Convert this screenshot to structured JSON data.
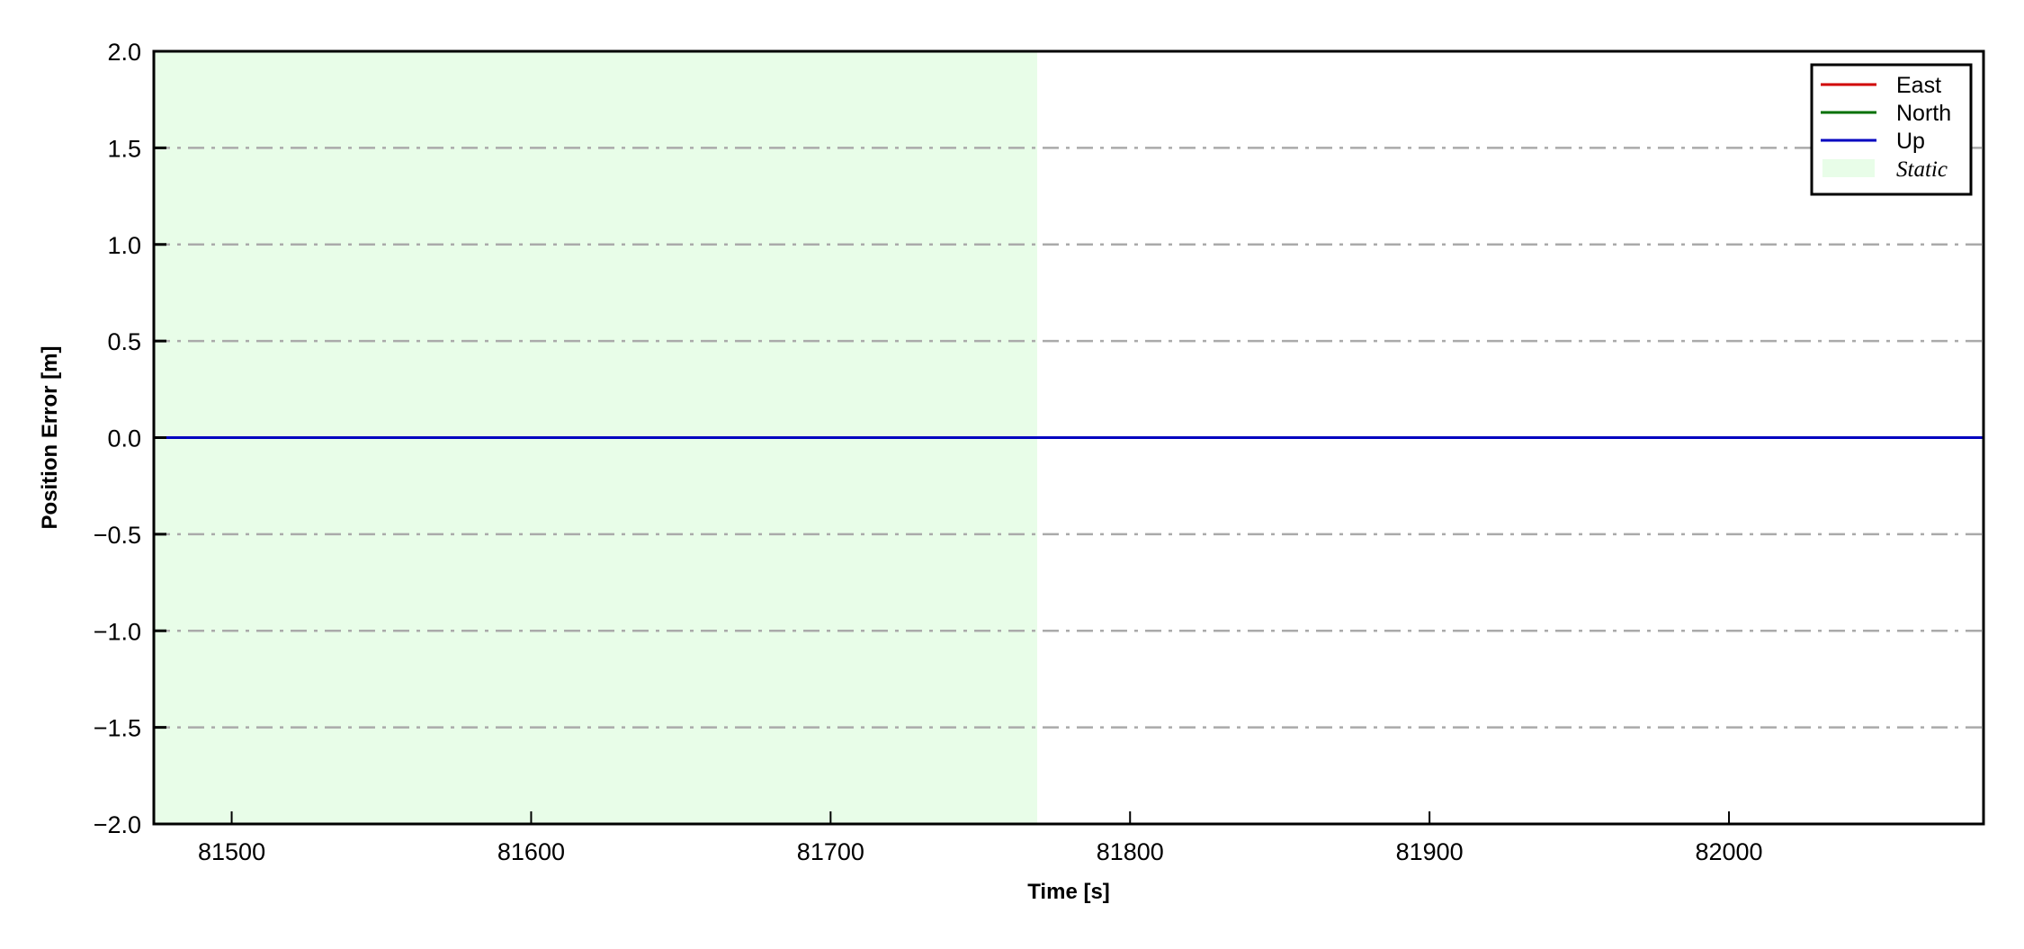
{
  "chart_data": {
    "type": "line",
    "title": "",
    "xlabel": "Time [s]",
    "ylabel": "Position Error [m]",
    "xlim": [
      81474,
      82085
    ],
    "ylim": [
      -2.0,
      2.0
    ],
    "xticks": [
      81500,
      81600,
      81700,
      81800,
      81900,
      82000
    ],
    "xtick_labels": [
      "81500",
      "81600",
      "81700",
      "81800",
      "81900",
      "82000"
    ],
    "yticks": [
      -2.0,
      -1.5,
      -1.0,
      -0.5,
      0.0,
      0.5,
      1.0,
      1.5,
      2.0
    ],
    "ytick_labels": [
      "−2.0",
      "−1.5",
      "−1.0",
      "−0.5",
      "0.0",
      "0.5",
      "1.0",
      "1.5",
      "2.0"
    ],
    "grid": {
      "axis": "y",
      "style": "dash-dot",
      "color": "#aaaaaa"
    },
    "legend_position": "top-right",
    "series": [
      {
        "name": "East",
        "color": "#d00000",
        "x": [
          81474,
          82085
        ],
        "y": [
          0.0,
          0.0
        ]
      },
      {
        "name": "North",
        "color": "#007000",
        "x": [
          81474,
          82085
        ],
        "y": [
          0.0,
          0.0
        ]
      },
      {
        "name": "Up",
        "color": "#0000c0",
        "x": [
          81474,
          82085
        ],
        "y": [
          0.0,
          0.0
        ]
      }
    ],
    "spans": [
      {
        "name": "Static",
        "color": "#e8fde8",
        "x_start": 81474,
        "x_end": 81769
      }
    ]
  }
}
